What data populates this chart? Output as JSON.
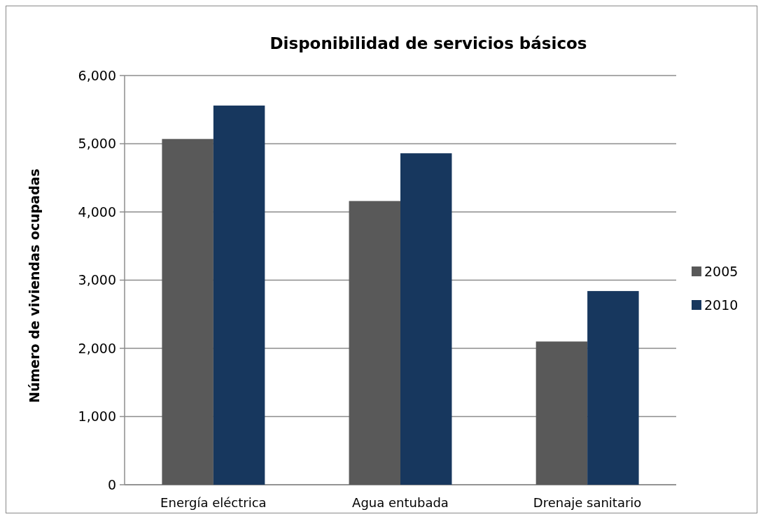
{
  "chart_data": {
    "type": "bar",
    "title": "Disponibilidad de servicios básicos",
    "ylabel": "Número de viviendas ocupadas",
    "categories": [
      "Energía eléctrica",
      "Agua entubada",
      "Drenaje sanitario"
    ],
    "series": [
      {
        "name": "2005",
        "color": "#595959",
        "values": [
          5070,
          4160,
          2100
        ]
      },
      {
        "name": "2010",
        "color": "#17375e",
        "values": [
          5560,
          4860,
          2840
        ]
      }
    ],
    "ylim": [
      0,
      6000
    ],
    "yticks": [
      {
        "value": 0,
        "label": "0"
      },
      {
        "value": 1000,
        "label": "1,000"
      },
      {
        "value": 2000,
        "label": "2,000"
      },
      {
        "value": 3000,
        "label": "3,000"
      },
      {
        "value": 4000,
        "label": "4,000"
      },
      {
        "value": 5000,
        "label": "5,000"
      },
      {
        "value": 6000,
        "label": "6,000"
      }
    ],
    "grid": "y",
    "legend": "right"
  }
}
